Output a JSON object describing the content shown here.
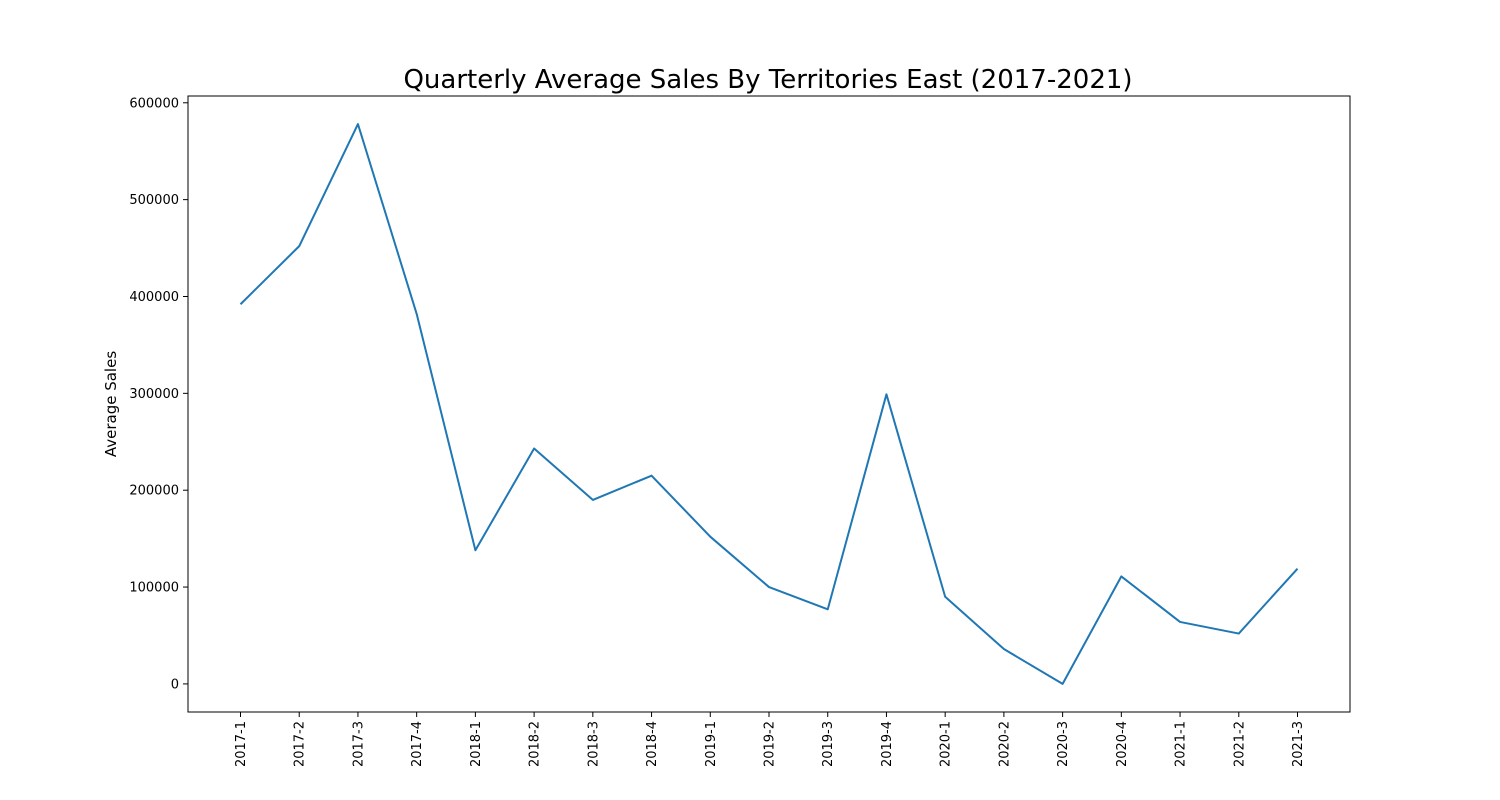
{
  "chart_data": {
    "type": "line",
    "title": "Quarterly Average Sales By Territories East (2017-2021)",
    "xlabel": "",
    "ylabel": "Average Sales",
    "categories": [
      "2017-1",
      "2017-2",
      "2017-3",
      "2017-4",
      "2018-1",
      "2018-2",
      "2018-3",
      "2018-4",
      "2019-1",
      "2019-2",
      "2019-3",
      "2019-4",
      "2020-1",
      "2020-2",
      "2020-3",
      "2020-4",
      "2021-1",
      "2021-2",
      "2021-3"
    ],
    "series": [
      {
        "name": "",
        "color": "#1f77b4",
        "values": [
          392000,
          452000,
          578000,
          382000,
          138000,
          243000,
          190000,
          215000,
          152000,
          100000,
          77000,
          299000,
          90000,
          36000,
          0,
          111000,
          64000,
          52000,
          119000
        ]
      }
    ],
    "ylim": [
      -29000,
      607000
    ],
    "yticks": [
      0,
      100000,
      200000,
      300000,
      400000,
      500000,
      600000
    ],
    "ytick_labels": [
      "0",
      "100000",
      "200000",
      "300000",
      "400000",
      "500000",
      "600000"
    ],
    "grid": false,
    "legend": "none"
  }
}
